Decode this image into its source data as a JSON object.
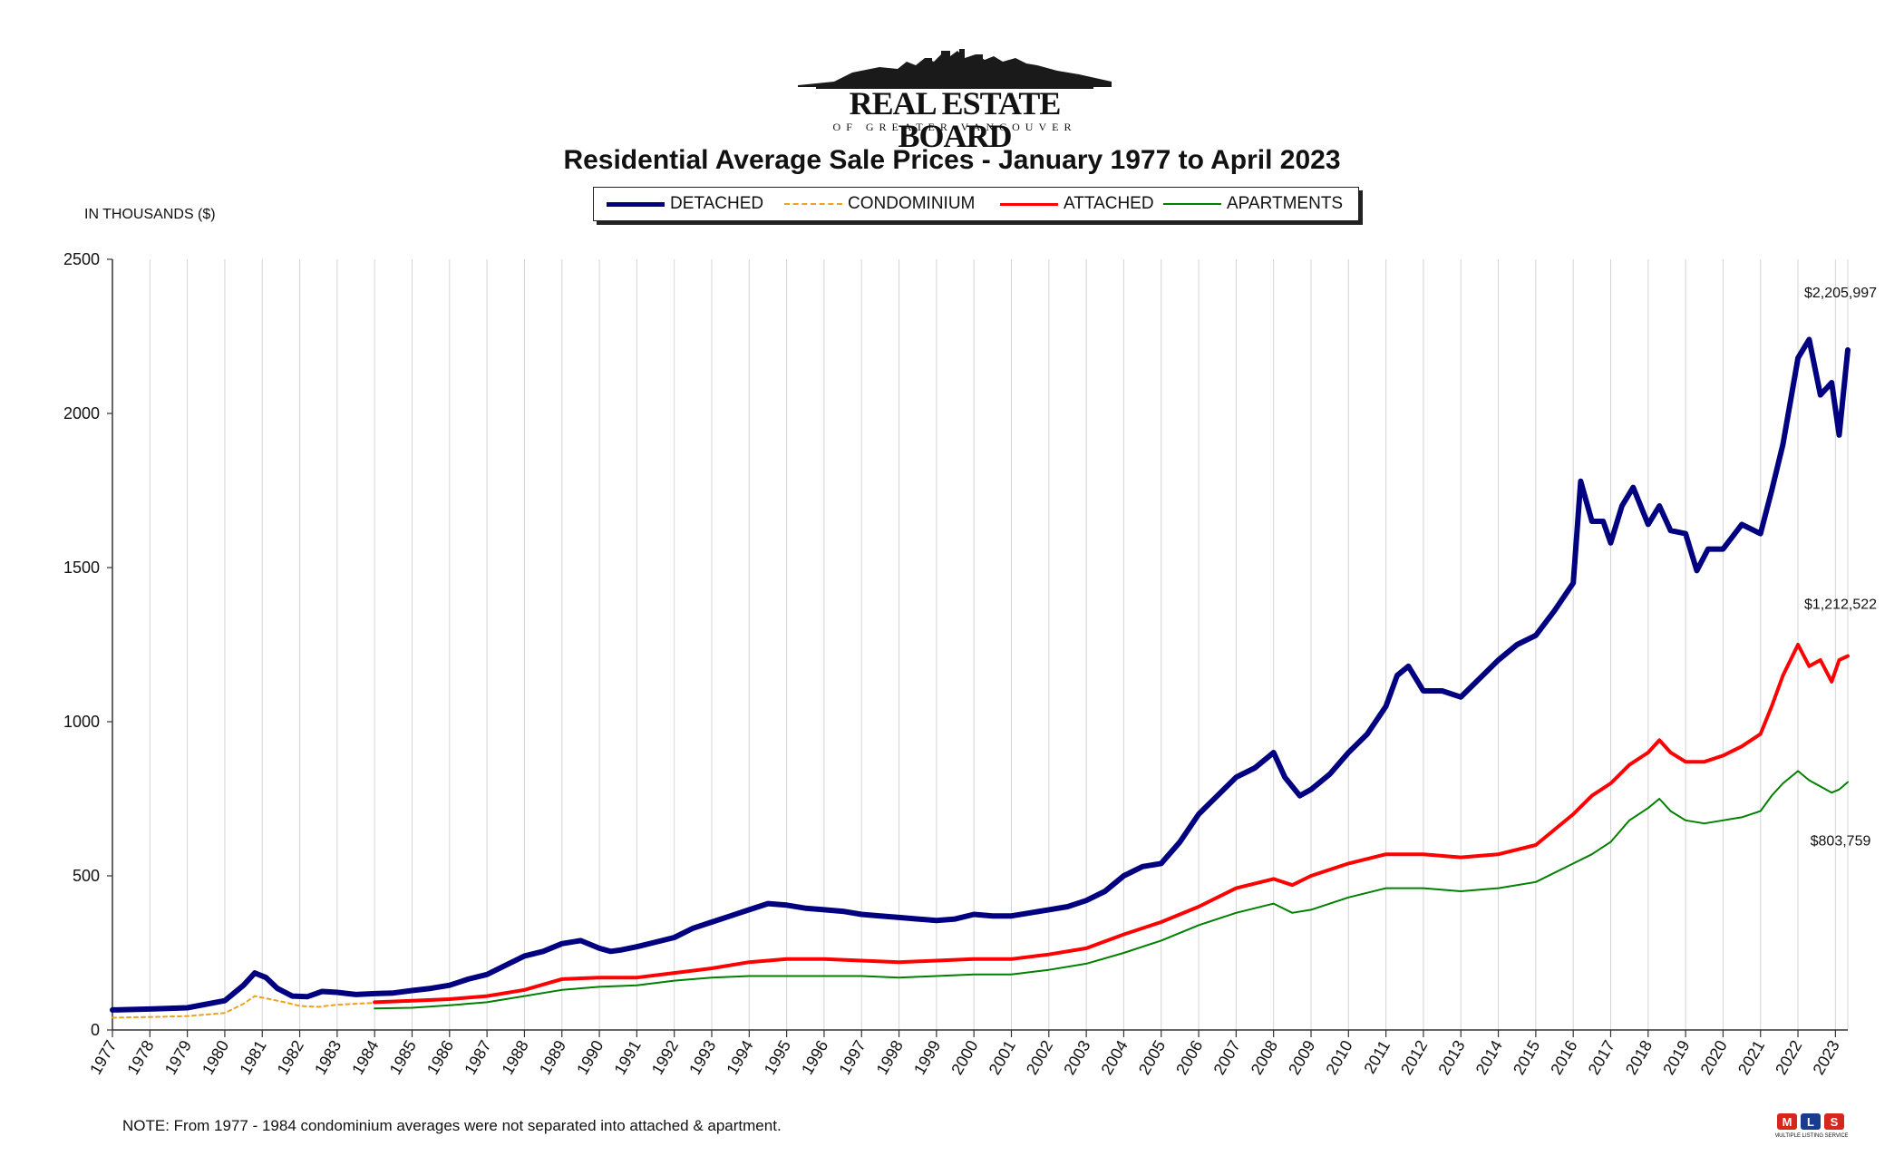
{
  "logo": {
    "name": "REAL ESTATE BOARD",
    "subtitle": "OF GREATER VANCOUVER"
  },
  "chart_data": {
    "type": "line",
    "title": "Residential Average Sale Prices  -  January 1977 to April 2023",
    "ylabel": "IN THOUSANDS ($)",
    "xlabel": "",
    "ylim": [
      0,
      2500
    ],
    "yticks": [
      0,
      500,
      1000,
      1500,
      2000,
      2500
    ],
    "xlim": [
      1977,
      2023.33
    ],
    "xticks": [
      "1977",
      "1978",
      "1979",
      "1980",
      "1981",
      "1982",
      "1983",
      "1984",
      "1985",
      "1986",
      "1987",
      "1988",
      "1989",
      "1990",
      "1991",
      "1992",
      "1993",
      "1994",
      "1995",
      "1996",
      "1997",
      "1998",
      "1999",
      "2000",
      "2001",
      "2002",
      "2003",
      "2004",
      "2005",
      "2006",
      "2007",
      "2008",
      "2009",
      "2010",
      "2011",
      "2012",
      "2013",
      "2014",
      "2015",
      "2016",
      "2017",
      "2018",
      "2019",
      "2020",
      "2021",
      "2022",
      "2023"
    ],
    "grid": "vertical",
    "legend_position": "top-center",
    "series": [
      {
        "name": "DETACHED",
        "color": "#000080",
        "style": "thick",
        "x": [
          1977,
          1978,
          1979,
          1980,
          1980.5,
          1980.8,
          1981.1,
          1981.4,
          1981.8,
          1982.2,
          1982.6,
          1983,
          1983.5,
          1984,
          1984.5,
          1985,
          1985.5,
          1986,
          1986.5,
          1987,
          1987.5,
          1988,
          1988.5,
          1989,
          1989.5,
          1990,
          1990.3,
          1990.6,
          1991,
          1991.5,
          1992,
          1992.5,
          1993,
          1993.5,
          1994,
          1994.5,
          1995,
          1995.5,
          1996,
          1996.5,
          1997,
          1997.5,
          1998,
          1998.5,
          1999,
          1999.5,
          2000,
          2000.5,
          2001,
          2001.5,
          2002,
          2002.5,
          2003,
          2003.5,
          2004,
          2004.5,
          2005,
          2005.5,
          2006,
          2006.5,
          2007,
          2007.5,
          2008,
          2008.3,
          2008.7,
          2009,
          2009.5,
          2010,
          2010.5,
          2011,
          2011.3,
          2011.6,
          2012,
          2012.5,
          2013,
          2013.5,
          2014,
          2014.5,
          2015,
          2015.5,
          2016,
          2016.2,
          2016.5,
          2016.8,
          2017,
          2017.3,
          2017.6,
          2018,
          2018.3,
          2018.6,
          2019,
          2019.3,
          2019.6,
          2020,
          2020.5,
          2021,
          2021.3,
          2021.6,
          2022,
          2022.3,
          2022.6,
          2022.9,
          2023.1,
          2023.33
        ],
        "values": [
          65,
          68,
          72,
          95,
          145,
          185,
          170,
          135,
          110,
          108,
          125,
          122,
          115,
          118,
          120,
          128,
          135,
          145,
          165,
          180,
          210,
          240,
          255,
          280,
          290,
          265,
          255,
          260,
          270,
          285,
          300,
          330,
          350,
          370,
          390,
          410,
          405,
          395,
          390,
          385,
          375,
          370,
          365,
          360,
          355,
          360,
          375,
          370,
          370,
          380,
          390,
          400,
          420,
          450,
          500,
          530,
          540,
          610,
          700,
          760,
          820,
          850,
          900,
          820,
          760,
          780,
          830,
          900,
          960,
          1050,
          1150,
          1180,
          1100,
          1100,
          1080,
          1140,
          1200,
          1250,
          1280,
          1360,
          1450,
          1780,
          1650,
          1650,
          1580,
          1700,
          1760,
          1640,
          1700,
          1620,
          1610,
          1490,
          1560,
          1560,
          1640,
          1610,
          1750,
          1900,
          2180,
          2240,
          2060,
          2100,
          1930,
          2206
        ]
      },
      {
        "name": "CONDOMINIUM",
        "color": "#f0a020",
        "style": "dotted",
        "x": [
          1977,
          1978,
          1979,
          1980,
          1980.5,
          1980.8,
          1981.2,
          1981.6,
          1982,
          1982.5,
          1983,
          1983.5,
          1984
        ],
        "values": [
          40,
          42,
          45,
          55,
          85,
          110,
          100,
          90,
          78,
          75,
          82,
          85,
          88
        ]
      },
      {
        "name": "ATTACHED",
        "color": "#ff0000",
        "style": "medium",
        "x": [
          1984,
          1985,
          1986,
          1987,
          1988,
          1989,
          1990,
          1991,
          1992,
          1993,
          1994,
          1995,
          1996,
          1997,
          1998,
          1999,
          2000,
          2001,
          2002,
          2003,
          2004,
          2005,
          2006,
          2007,
          2008,
          2008.5,
          2009,
          2010,
          2011,
          2012,
          2013,
          2014,
          2015,
          2016,
          2016.5,
          2017,
          2017.5,
          2018,
          2018.3,
          2018.6,
          2019,
          2019.5,
          2020,
          2020.5,
          2021,
          2021.3,
          2021.6,
          2022,
          2022.3,
          2022.6,
          2022.9,
          2023.1,
          2023.33
        ],
        "values": [
          90,
          95,
          100,
          110,
          130,
          165,
          170,
          170,
          185,
          200,
          220,
          230,
          230,
          225,
          220,
          225,
          230,
          230,
          245,
          265,
          310,
          350,
          400,
          460,
          490,
          470,
          500,
          540,
          570,
          570,
          560,
          570,
          600,
          700,
          760,
          800,
          860,
          900,
          940,
          900,
          870,
          870,
          890,
          920,
          960,
          1050,
          1150,
          1250,
          1180,
          1200,
          1130,
          1200,
          1213
        ]
      },
      {
        "name": "APARTMENTS",
        "color": "#008000",
        "style": "thin",
        "x": [
          1984,
          1985,
          1986,
          1987,
          1988,
          1989,
          1990,
          1991,
          1992,
          1993,
          1994,
          1995,
          1996,
          1997,
          1998,
          1999,
          2000,
          2001,
          2002,
          2003,
          2004,
          2005,
          2006,
          2007,
          2008,
          2008.5,
          2009,
          2010,
          2011,
          2012,
          2013,
          2014,
          2015,
          2016,
          2016.5,
          2017,
          2017.5,
          2018,
          2018.3,
          2018.6,
          2019,
          2019.5,
          2020,
          2020.5,
          2021,
          2021.3,
          2021.6,
          2022,
          2022.3,
          2022.6,
          2022.9,
          2023.1,
          2023.33
        ],
        "values": [
          70,
          72,
          80,
          90,
          110,
          130,
          140,
          145,
          160,
          170,
          175,
          175,
          175,
          175,
          170,
          175,
          180,
          180,
          195,
          215,
          250,
          290,
          340,
          380,
          410,
          380,
          390,
          430,
          460,
          460,
          450,
          460,
          480,
          540,
          570,
          610,
          680,
          720,
          750,
          710,
          680,
          670,
          680,
          690,
          710,
          760,
          800,
          840,
          810,
          790,
          770,
          780,
          804
        ]
      }
    ],
    "annotations": [
      "$2,205,997",
      "$1,212,522",
      "$803,759"
    ]
  },
  "unit_label": "IN THOUSANDS ($)",
  "note": "NOTE:  From 1977 - 1984 condominium averages were not separated into attached & apartment.",
  "mls_logo": {
    "text": "MLS",
    "caption": "MULTIPLE LISTING SERVICE"
  }
}
